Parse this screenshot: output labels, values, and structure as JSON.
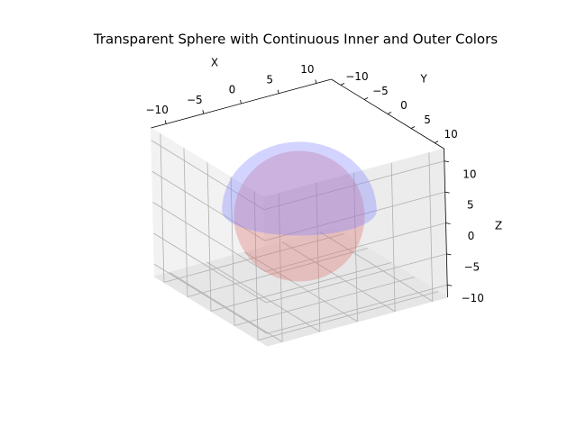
{
  "chart_data": {
    "type": "sphere3d",
    "title": "Transparent Sphere with Continuous Inner and Outer Colors",
    "xlabel": "X",
    "ylabel": "Y",
    "zlabel": "Z",
    "xlim": [
      -12,
      12
    ],
    "ylim": [
      -12,
      12
    ],
    "zlim": [
      -12,
      12
    ],
    "xticks": [
      {
        "value": -10,
        "label": "−10"
      },
      {
        "value": -5,
        "label": "−5"
      },
      0,
      5,
      10
    ],
    "yticks": [
      {
        "value": -10,
        "label": "−10"
      },
      {
        "value": -5,
        "label": "−5"
      },
      0,
      5,
      10
    ],
    "zticks": [
      {
        "value": -10,
        "label": "−10"
      },
      {
        "value": -5,
        "label": "−5"
      },
      0,
      5,
      10
    ],
    "radius": 10,
    "inner_color": "#e07070",
    "outer_color": "#8080ff",
    "grid": true
  }
}
